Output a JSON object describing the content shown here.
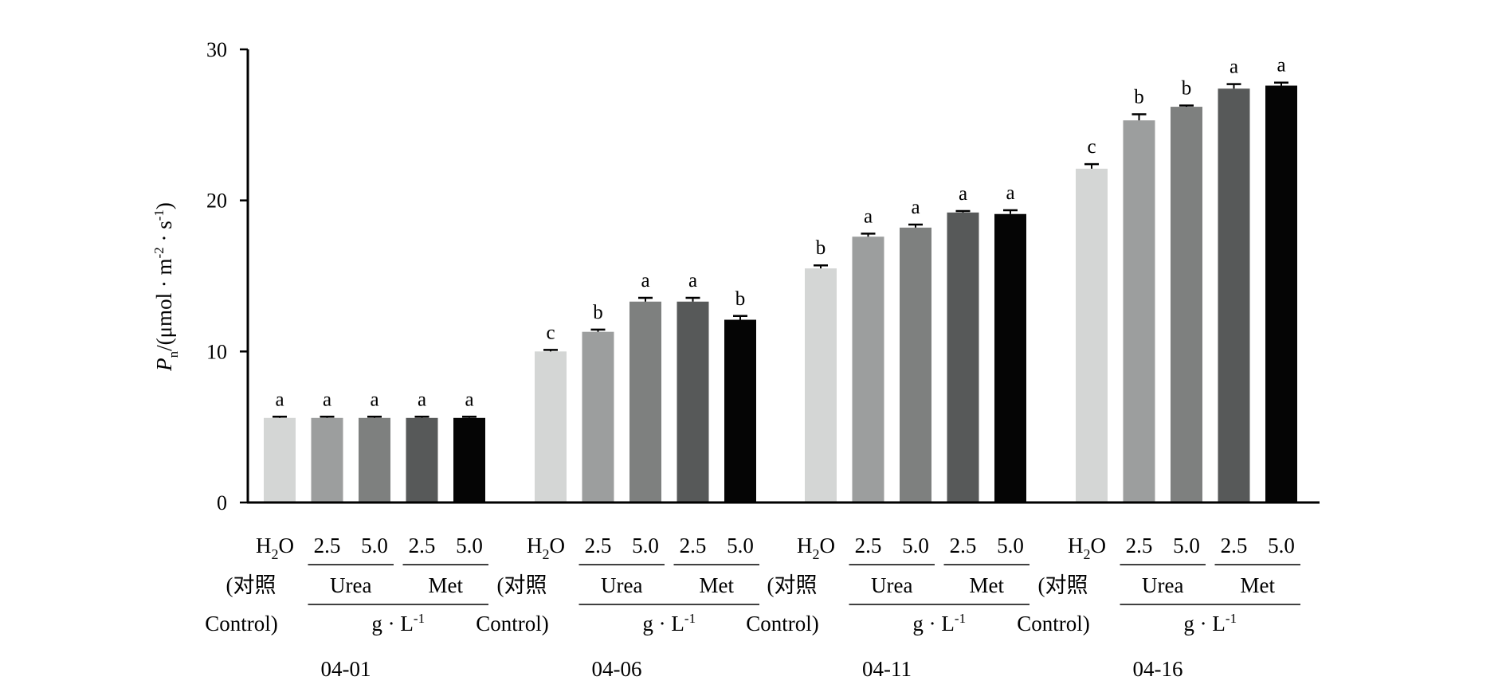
{
  "chart_data": {
    "type": "bar",
    "ylabel": "P n /(μmol · m -2 · s -1 )",
    "ylabel_parts": {
      "symbol": "P",
      "subscript": "n",
      "prefix": "/(μmol · m",
      "sup1": "-2",
      "mid": " · s",
      "sup2": "-1",
      "suffix": ")"
    },
    "ylim": [
      0,
      30
    ],
    "yticks": [
      "0",
      "10",
      "20",
      "30"
    ],
    "treatments": [
      "H2O",
      "2.5",
      "5.0",
      "2.5",
      "5.0"
    ],
    "series_colors": [
      "#d4d6d5",
      "#9c9e9e",
      "#7e807f",
      "#575959",
      "#050505"
    ],
    "groups": [
      {
        "date": "04-01",
        "values": [
          5.6,
          5.6,
          5.6,
          5.6,
          5.6
        ],
        "errors": [
          0.08,
          0.08,
          0.08,
          0.08,
          0.08
        ],
        "letters": [
          "a",
          "a",
          "a",
          "a",
          "a"
        ]
      },
      {
        "date": "04-06",
        "values": [
          10.0,
          11.3,
          13.3,
          13.3,
          12.1
        ],
        "errors": [
          0.1,
          0.15,
          0.25,
          0.25,
          0.25
        ],
        "letters": [
          "c",
          "b",
          "a",
          "a",
          "b"
        ]
      },
      {
        "date": "04-11",
        "values": [
          15.5,
          17.6,
          18.2,
          19.2,
          19.1
        ],
        "errors": [
          0.2,
          0.2,
          0.2,
          0.1,
          0.25
        ],
        "letters": [
          "b",
          "a",
          "a",
          "a",
          "a"
        ]
      },
      {
        "date": "04-16",
        "values": [
          22.1,
          25.3,
          26.2,
          27.4,
          27.6
        ],
        "errors": [
          0.3,
          0.4,
          0.08,
          0.3,
          0.2
        ],
        "letters": [
          "c",
          "b",
          "b",
          "a",
          "a"
        ]
      }
    ],
    "category_labels": {
      "h2o_main": "H",
      "h2o_sub": "2",
      "h2o_tail": "O",
      "control_line1": "(对照",
      "control_line2": "Control)",
      "urea": "Urea",
      "met": "Met",
      "unit_main": "g · L",
      "unit_sup": "-1"
    },
    "grid": false,
    "legend": "none"
  }
}
